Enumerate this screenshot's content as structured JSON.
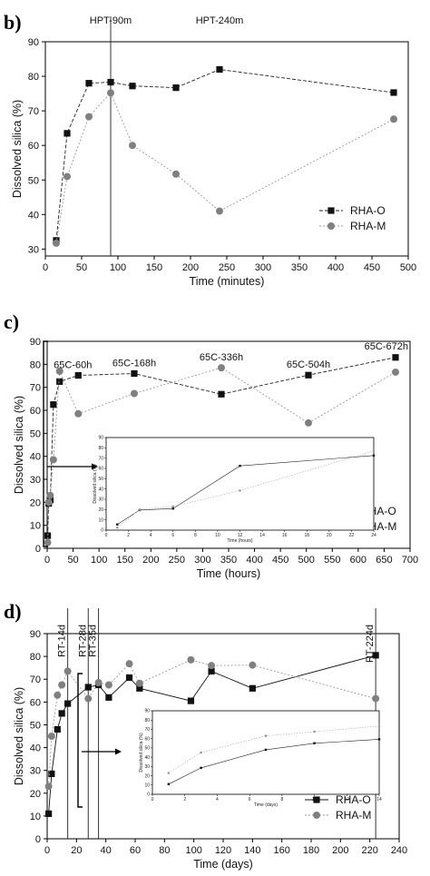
{
  "chart_data": [
    {
      "panel": "b)",
      "type": "line",
      "xlabel": "Time (minutes)",
      "ylabel": "Dissolved silica (%)",
      "xlim": [
        0,
        500
      ],
      "ylim": [
        28,
        90
      ],
      "xticks": [
        0,
        50,
        100,
        150,
        200,
        250,
        300,
        350,
        400,
        450,
        500
      ],
      "yticks": [
        30,
        40,
        50,
        60,
        70,
        80,
        90
      ],
      "series": [
        {
          "name": "RHA-O",
          "x": [
            15,
            30,
            60,
            90,
            120,
            180,
            240,
            480
          ],
          "y": [
            32.5,
            63.5,
            78,
            78.3,
            77.2,
            76.7,
            82,
            75.3
          ],
          "marker": "square",
          "color": "#111111"
        },
        {
          "name": "RHA-M",
          "x": [
            15,
            30,
            60,
            90,
            120,
            180,
            240,
            480
          ],
          "y": [
            31.7,
            51,
            68.3,
            75.2,
            60,
            51.7,
            41,
            67.6
          ],
          "marker": "circle",
          "color": "#808080"
        }
      ],
      "vlines": [
        {
          "x": 90,
          "label": "HPT-90m"
        }
      ],
      "annotations": [
        {
          "x": 240,
          "text": "HPT-240m"
        }
      ],
      "legend": "bottom-right"
    },
    {
      "panel": "c)",
      "type": "line",
      "xlabel": "Time (hours)",
      "ylabel": "Dissolved silica (%)",
      "xlim": [
        0,
        700
      ],
      "ylim": [
        0,
        90
      ],
      "xticks": [
        0,
        50,
        100,
        150,
        200,
        250,
        300,
        350,
        400,
        450,
        500,
        550,
        600,
        650,
        700
      ],
      "yticks": [
        0,
        10,
        20,
        30,
        40,
        50,
        60,
        70,
        80,
        90
      ],
      "series": [
        {
          "name": "RHA-O",
          "x": [
            1,
            3,
            6,
            12,
            24,
            60,
            168,
            336,
            504,
            672
          ],
          "y": [
            5.5,
            19.5,
            21,
            62.5,
            72.5,
            75.2,
            76,
            67,
            75.3,
            83
          ],
          "marker": "square",
          "color": "#111111"
        },
        {
          "name": "RHA-M",
          "x": [
            1,
            3,
            6,
            12,
            24,
            60,
            168,
            336,
            504,
            672
          ],
          "y": [
            2.5,
            20,
            23,
            38.5,
            77,
            58.5,
            67.3,
            78.5,
            54.5,
            76.6
          ],
          "marker": "circle",
          "color": "#808080"
        }
      ],
      "annotations": [
        {
          "x": 60,
          "text": "65C-60h"
        },
        {
          "x": 168,
          "text": "65C-168h"
        },
        {
          "x": 336,
          "text": "65C-336h"
        },
        {
          "x": 504,
          "text": "65C-504h"
        },
        {
          "x": 672,
          "text": "65C-672h"
        }
      ],
      "legend": "bottom-right",
      "inset": {
        "xlabel": "Time (hours)",
        "ylabel": "Dissolved silica (%)",
        "xlim": [
          0,
          24
        ],
        "ylim": [
          0,
          90
        ],
        "xticks": [
          0,
          2,
          4,
          6,
          8,
          10,
          12,
          14,
          16,
          18,
          20,
          22,
          24
        ],
        "yticks": [
          0,
          10,
          20,
          30,
          40,
          50,
          60,
          70,
          80,
          90
        ],
        "series": [
          {
            "name": "RHA-O",
            "x": [
              1,
              3,
              6,
              12,
              24
            ],
            "y": [
              5.5,
              19.5,
              21,
              62.5,
              72.5
            ]
          },
          {
            "name": "RHA-M",
            "x": [
              1,
              3,
              6,
              12,
              24
            ],
            "y": [
              2.5,
              20,
              23,
              38.5,
              77
            ]
          }
        ]
      }
    },
    {
      "panel": "d)",
      "type": "line",
      "xlabel": "Time (days)",
      "ylabel": "Dissolved silica (%)",
      "xlim": [
        0,
        240
      ],
      "ylim": [
        0,
        90
      ],
      "xticks": [
        0,
        20,
        40,
        60,
        80,
        100,
        120,
        140,
        160,
        180,
        200,
        220,
        240
      ],
      "yticks": [
        0,
        10,
        20,
        30,
        40,
        50,
        60,
        70,
        80,
        90
      ],
      "series": [
        {
          "name": "RHA-O",
          "x": [
            1,
            3,
            7,
            10,
            14,
            28,
            35,
            42,
            56,
            63,
            98,
            112,
            140,
            224
          ],
          "y": [
            11,
            28.5,
            48,
            55,
            59.3,
            66.5,
            67.5,
            62,
            70.7,
            66,
            60.5,
            73.5,
            66,
            80.5
          ],
          "marker": "square",
          "color": "#111111"
        },
        {
          "name": "RHA-M",
          "x": [
            1,
            3,
            7,
            10,
            14,
            28,
            35,
            42,
            56,
            63,
            98,
            112,
            140,
            224
          ],
          "y": [
            23,
            45,
            63,
            67.5,
            73.5,
            61.5,
            68.5,
            67.5,
            76.8,
            68.2,
            78.5,
            76,
            76.2,
            61.5
          ],
          "marker": "circle",
          "color": "#808080"
        }
      ],
      "vlines": [
        {
          "x": 14,
          "label": "RT-14d"
        },
        {
          "x": 28,
          "label": "RT-28d"
        },
        {
          "x": 35,
          "label": "RT-35d"
        },
        {
          "x": 224,
          "label": "RT-224d"
        }
      ],
      "legend": "bottom-right",
      "inset": {
        "xlabel": "Time (days)",
        "ylabel": "Dissolved silica (%)",
        "xlim": [
          0,
          14
        ],
        "ylim": [
          0,
          90
        ],
        "xticks": [
          0,
          2,
          4,
          6,
          8,
          10,
          12,
          14
        ],
        "yticks": [
          0,
          10,
          20,
          30,
          40,
          50,
          60,
          70,
          80,
          90
        ],
        "series": [
          {
            "name": "RHA-O",
            "x": [
              1,
              3,
              7,
              10,
              14
            ],
            "y": [
              11,
              28.5,
              48,
              55,
              59.3
            ]
          },
          {
            "name": "RHA-M",
            "x": [
              1,
              3,
              7,
              10,
              14
            ],
            "y": [
              23,
              45,
              63,
              67.5,
              73.5
            ]
          }
        ]
      }
    }
  ]
}
